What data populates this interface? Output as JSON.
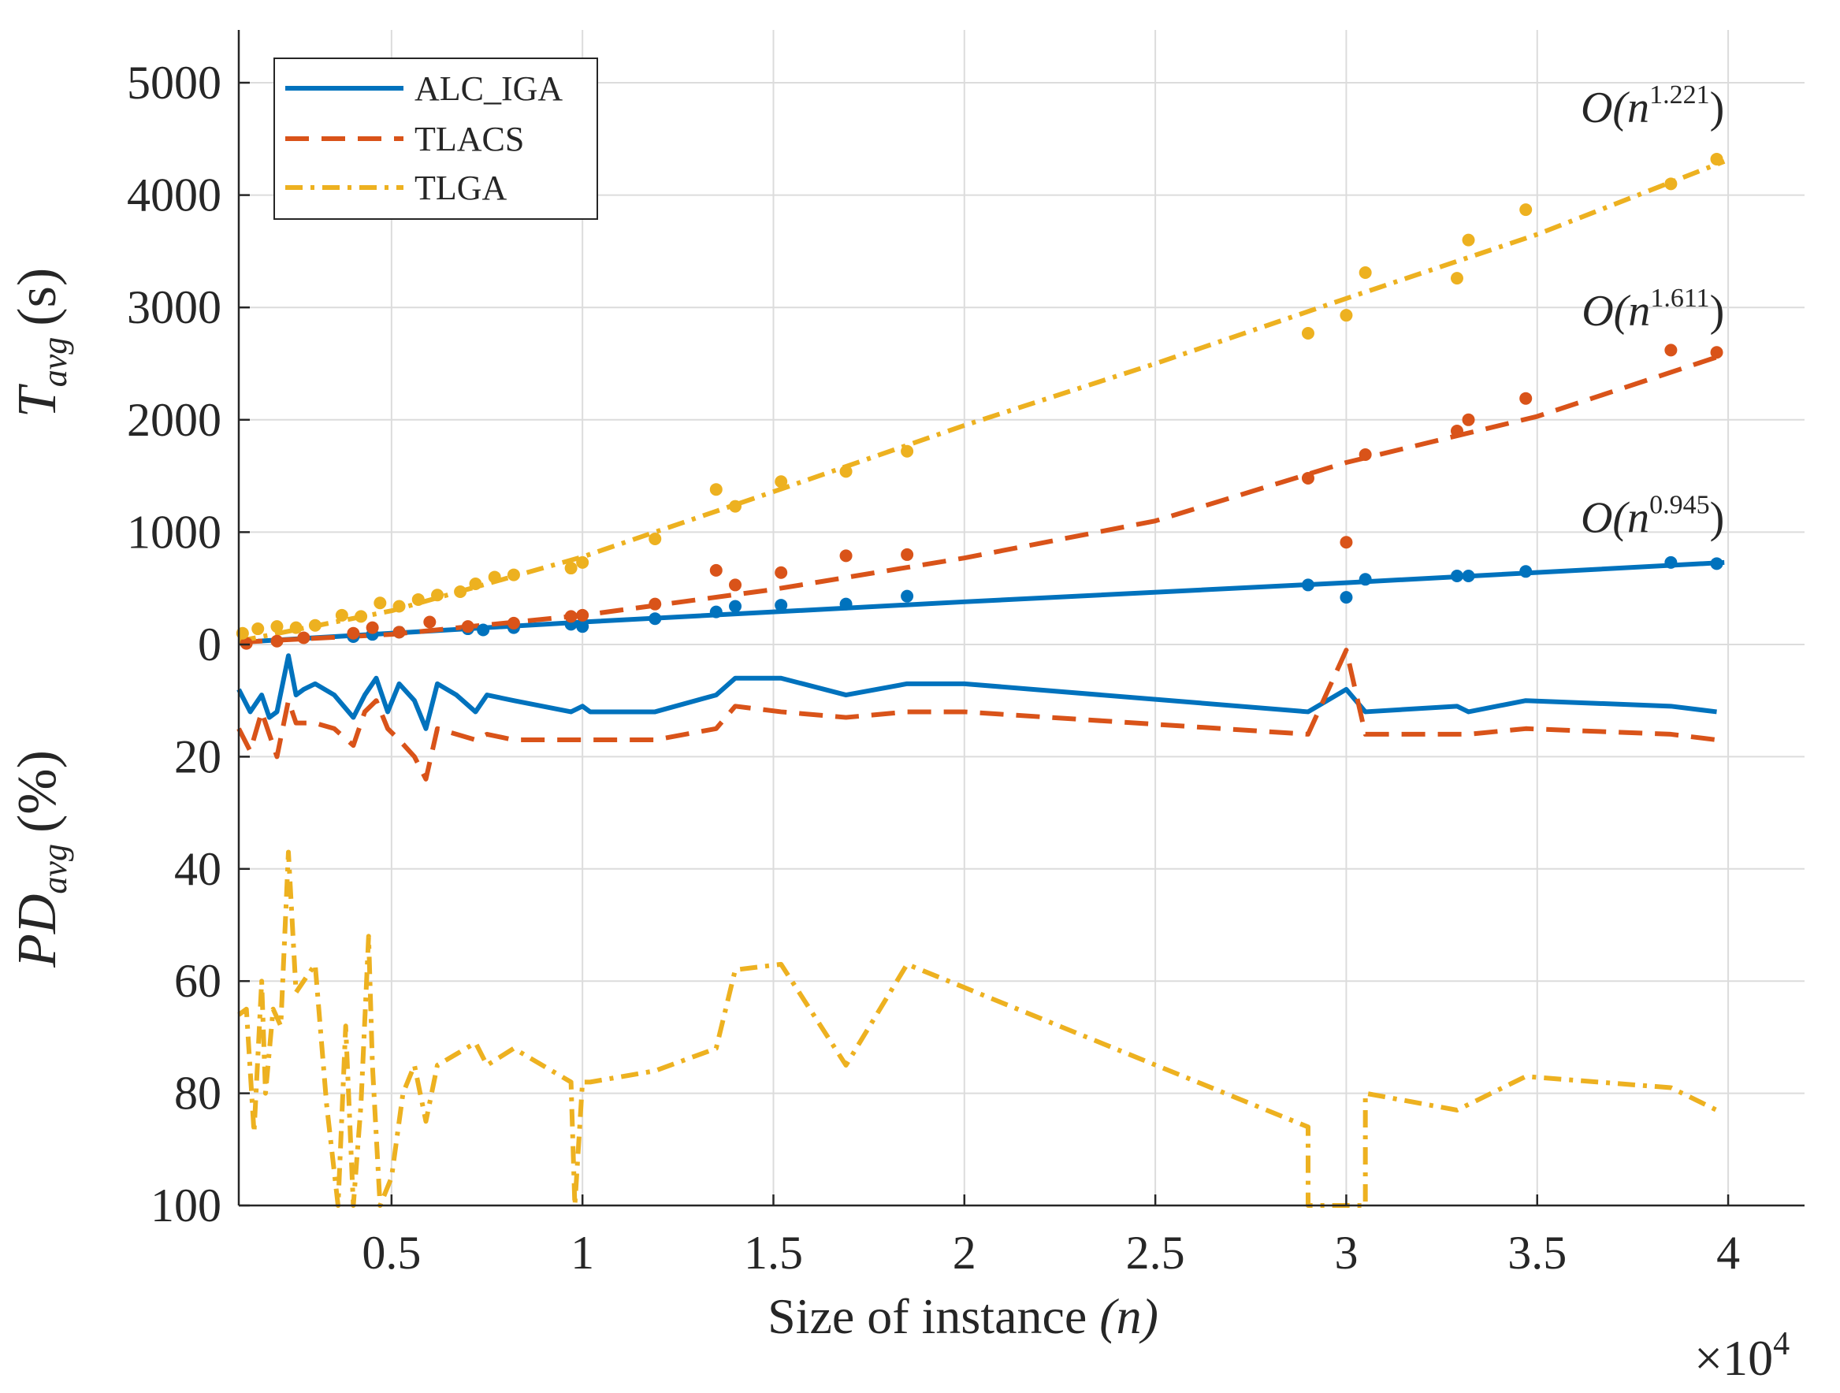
{
  "colors": {
    "alc_iga": "#0072BD",
    "tlacs": "#D95319",
    "tlga": "#EDB120",
    "axis": "#262626",
    "grid": "#dcdcdc"
  },
  "chart_data": {
    "type": "line",
    "x_label": "Size of instance",
    "x_label_var": "(n)",
    "x_exponent_label": "×10",
    "x_exponent_power": "4",
    "x_ticks": [
      "0.5",
      "1",
      "1.5",
      "2",
      "2.5",
      "3",
      "3.5",
      "4"
    ],
    "x_tick_values": [
      0.5,
      1,
      1.5,
      2,
      2.5,
      3,
      3.5,
      4
    ],
    "xlim": [
      0.1,
      4.2
    ],
    "grid": true,
    "legend_position": "top-left",
    "legend": [
      "ALC_IGA",
      "TLACS",
      "TLGA"
    ],
    "top_panel": {
      "y_label": "T",
      "y_label_sub": "avg",
      "y_label_unit": "(s)",
      "y_ticks": [
        "0",
        "1000",
        "2000",
        "3000",
        "4000",
        "5000"
      ],
      "y_tick_values": [
        0,
        1000,
        2000,
        3000,
        4000,
        5000
      ],
      "ylim": [
        0,
        5500
      ],
      "annotations": [
        {
          "text": "O(n",
          "sup": "1.221",
          "close": ")",
          "x": 3.99,
          "y": 4650
        },
        {
          "text": "O(n",
          "sup": "1.611",
          "close": ")",
          "x": 3.99,
          "y": 2840
        },
        {
          "text": "O(n",
          "sup": "0.945",
          "close": ")",
          "x": 3.99,
          "y": 1000
        }
      ],
      "series": [
        {
          "name": "ALC_IGA",
          "fit_exponent": 0.945,
          "fit_x": [
            0.15,
            1.0,
            2.0,
            3.0,
            3.99
          ],
          "fit_y": [
            30,
            200,
            380,
            550,
            730
          ],
          "points_x": [
            0.4,
            0.45,
            0.52,
            0.7,
            0.74,
            0.82,
            0.97,
            1.0,
            1.19,
            1.35,
            1.4,
            1.52,
            1.69,
            1.85,
            2.9,
            3.0,
            3.05,
            3.29,
            3.32,
            3.47,
            3.85,
            3.97
          ],
          "points_y": [
            70,
            90,
            110,
            140,
            130,
            150,
            180,
            160,
            230,
            290,
            340,
            350,
            360,
            430,
            530,
            420,
            580,
            610,
            610,
            650,
            730,
            720
          ]
        },
        {
          "name": "TLACS",
          "fit_exponent": 1.611,
          "fit_x": [
            0.1,
            0.5,
            1.0,
            1.5,
            2.0,
            2.5,
            3.0,
            3.5,
            3.99
          ],
          "fit_y": [
            20,
            90,
            260,
            490,
            770,
            1100,
            1620,
            2030,
            2580
          ],
          "points_x": [
            0.12,
            0.2,
            0.27,
            0.4,
            0.45,
            0.52,
            0.6,
            0.7,
            0.82,
            0.97,
            1.0,
            1.19,
            1.35,
            1.4,
            1.52,
            1.69,
            1.85,
            2.9,
            3.0,
            3.05,
            3.29,
            3.32,
            3.47,
            3.85,
            3.97
          ],
          "points_y": [
            10,
            30,
            60,
            100,
            150,
            110,
            200,
            160,
            190,
            250,
            260,
            360,
            660,
            530,
            640,
            790,
            800,
            1480,
            910,
            1690,
            1900,
            2000,
            2190,
            2620,
            2600
          ]
        },
        {
          "name": "TLGA",
          "fit_exponent": 1.221,
          "fit_x": [
            0.1,
            0.5,
            1.0,
            1.5,
            2.0,
            2.5,
            3.0,
            3.5,
            3.99
          ],
          "fit_y": [
            30,
            300,
            780,
            1360,
            1950,
            2500,
            3080,
            3650,
            4300
          ],
          "points_x": [
            0.11,
            0.15,
            0.2,
            0.25,
            0.3,
            0.37,
            0.42,
            0.47,
            0.52,
            0.57,
            0.62,
            0.68,
            0.72,
            0.77,
            0.82,
            0.97,
            1.0,
            1.19,
            1.35,
            1.4,
            1.52,
            1.69,
            1.85,
            2.9,
            3.0,
            3.05,
            3.29,
            3.32,
            3.47,
            3.85,
            3.97
          ],
          "points_y": [
            100,
            140,
            160,
            150,
            170,
            260,
            250,
            370,
            340,
            400,
            440,
            470,
            540,
            600,
            620,
            680,
            730,
            940,
            1380,
            1230,
            1450,
            1540,
            1720,
            2770,
            2930,
            3310,
            3260,
            3600,
            3870,
            4100,
            4320
          ]
        }
      ]
    },
    "bottom_panel": {
      "y_label": "PD",
      "y_label_sub": "avg",
      "y_label_unit": "(%)",
      "y_ticks": [
        "20",
        "40",
        "60",
        "80",
        "100"
      ],
      "y_tick_values": [
        20,
        40,
        60,
        80,
        100
      ],
      "ylim": [
        0,
        100
      ],
      "y_reversed": true,
      "series": [
        {
          "name": "ALC_IGA",
          "x": [
            0.1,
            0.13,
            0.16,
            0.18,
            0.2,
            0.23,
            0.25,
            0.27,
            0.3,
            0.35,
            0.4,
            0.43,
            0.46,
            0.49,
            0.52,
            0.56,
            0.59,
            0.62,
            0.67,
            0.72,
            0.75,
            0.82,
            0.97,
            1.0,
            1.02,
            1.19,
            1.35,
            1.4,
            1.52,
            1.69,
            1.85,
            2.0,
            2.9,
            3.0,
            3.05,
            3.29,
            3.32,
            3.47,
            3.85,
            3.97
          ],
          "y": [
            8,
            12,
            9,
            13,
            12,
            2,
            9,
            8,
            7,
            9,
            13,
            9,
            6,
            12,
            7,
            10,
            15,
            7,
            9,
            12,
            9,
            10,
            12,
            11,
            12,
            12,
            9,
            6,
            6,
            9,
            7,
            7,
            12,
            8,
            12,
            11,
            12,
            10,
            11,
            12
          ]
        },
        {
          "name": "TLACS",
          "x": [
            0.1,
            0.13,
            0.16,
            0.18,
            0.2,
            0.23,
            0.25,
            0.27,
            0.3,
            0.35,
            0.4,
            0.43,
            0.46,
            0.49,
            0.52,
            0.56,
            0.59,
            0.62,
            0.67,
            0.72,
            0.75,
            0.82,
            0.97,
            1.0,
            1.02,
            1.19,
            1.35,
            1.4,
            1.52,
            1.69,
            1.85,
            2.0,
            2.9,
            3.0,
            3.05,
            3.29,
            3.32,
            3.47,
            3.85,
            3.97
          ],
          "y": [
            15,
            19,
            12,
            16,
            20,
            10,
            14,
            14,
            14,
            15,
            18,
            12,
            10,
            15,
            17,
            20,
            24,
            15,
            16,
            17,
            16,
            17,
            17,
            17,
            17,
            17,
            15,
            11,
            12,
            13,
            12,
            12,
            16,
            1,
            16,
            16,
            16,
            15,
            16,
            17
          ]
        },
        {
          "name": "TLGA",
          "x": [
            0.1,
            0.12,
            0.14,
            0.16,
            0.17,
            0.19,
            0.21,
            0.23,
            0.25,
            0.27,
            0.3,
            0.33,
            0.36,
            0.38,
            0.4,
            0.42,
            0.44,
            0.45,
            0.47,
            0.5,
            0.53,
            0.56,
            0.59,
            0.62,
            0.67,
            0.72,
            0.75,
            0.82,
            0.97,
            0.98,
            1.0,
            1.02,
            1.19,
            1.35,
            1.4,
            1.52,
            1.69,
            1.85,
            2.9,
            2.9,
            3.0,
            3.05,
            3.05,
            3.29,
            3.32,
            3.47,
            3.85,
            3.97
          ],
          "y": [
            66,
            65,
            87,
            60,
            80,
            65,
            68,
            37,
            62,
            60,
            57,
            82,
            100,
            68,
            100,
            82,
            52,
            75,
            100,
            95,
            80,
            75,
            85,
            75,
            73,
            71,
            75,
            72,
            78,
            100,
            78,
            78,
            76,
            72,
            58,
            57,
            75,
            57,
            86,
            100,
            100,
            100,
            80,
            83,
            82,
            77,
            79,
            83
          ]
        }
      ]
    }
  }
}
